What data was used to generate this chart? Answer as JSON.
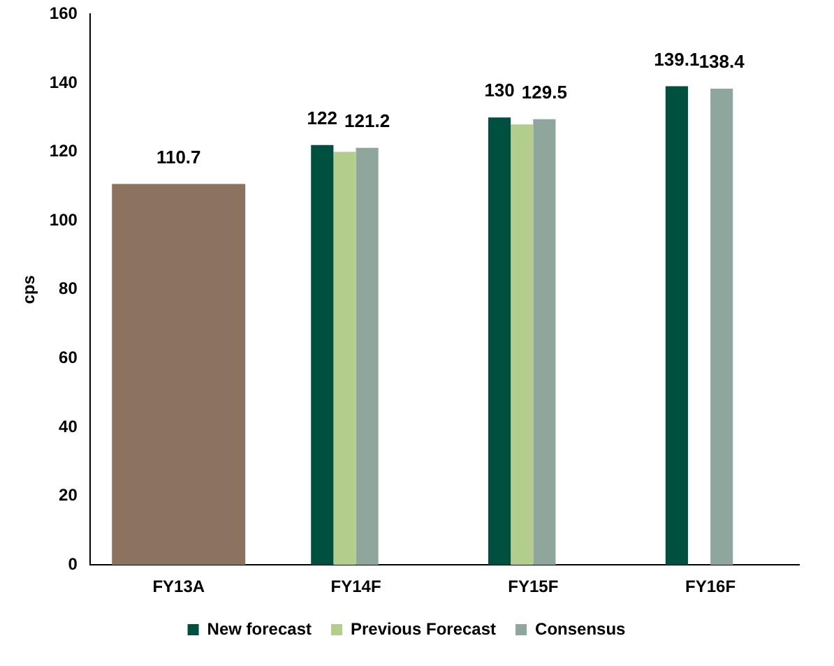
{
  "chart_data": {
    "type": "bar",
    "ylabel": "cps",
    "categories": [
      "FY13A",
      "FY14F",
      "FY15F",
      "FY16F"
    ],
    "series": [
      {
        "color": "#8b735f",
        "values": [
          110.7,
          null,
          null,
          null
        ],
        "value_labels": [
          "110.7",
          null,
          null,
          null
        ]
      },
      {
        "name": "New forecast",
        "color": "#00503f",
        "values": [
          null,
          122,
          130,
          139.1
        ],
        "value_labels": [
          null,
          "122",
          "130",
          "139.1"
        ]
      },
      {
        "name": "Previous Forecast",
        "color": "#b2cd8c",
        "values": [
          null,
          120,
          128,
          null
        ],
        "value_labels": [
          null,
          null,
          null,
          null
        ]
      },
      {
        "name": "Consensus",
        "color": "#8fa69c",
        "values": [
          null,
          121.2,
          129.5,
          138.4
        ],
        "value_labels": [
          null,
          "121.2",
          "129.5",
          "138.4"
        ]
      }
    ],
    "ylim": [
      0,
      160
    ],
    "yticks": [
      0,
      20,
      40,
      60,
      80,
      100,
      120,
      140,
      160
    ],
    "grid": false,
    "legend": "bottom"
  }
}
